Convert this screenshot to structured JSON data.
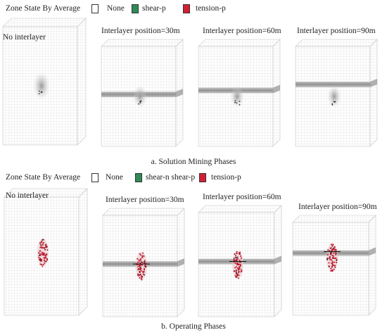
{
  "colors": {
    "none": "#ffffff",
    "shear_n": "#2e8b57",
    "shear_p": "#2e8b57",
    "tension_p": "#d31f35",
    "grid": "#cfcfcf",
    "interlayer": "#8a8a8a"
  },
  "section_a": {
    "legend": {
      "title": "Zone State By Average",
      "items": [
        {
          "label": "None",
          "color": "#ffffff"
        },
        {
          "label": "shear-p",
          "color": "#2e8b57"
        },
        {
          "label": "tension-p",
          "color": "#d31f35"
        }
      ]
    },
    "panels": [
      {
        "label": "No interlayer",
        "interlayer": false,
        "interlayer_depth_m": null
      },
      {
        "label": "Interlayer position=30m",
        "interlayer": true,
        "interlayer_depth_m": 30
      },
      {
        "label": "Interlayer position=60m",
        "interlayer": true,
        "interlayer_depth_m": 60
      },
      {
        "label": "Interlayer position=90m",
        "interlayer": true,
        "interlayer_depth_m": 90
      }
    ],
    "caption": "a. Solution Mining Phases"
  },
  "section_b": {
    "legend": {
      "title": "Zone State By Average",
      "items": [
        {
          "label": "None",
          "color": "#ffffff"
        },
        {
          "label": "shear-n  shear-p",
          "color": "#2e8b57"
        },
        {
          "label": "tension-p",
          "color": "#d31f35"
        }
      ]
    },
    "panels": [
      {
        "label": "No interlayer",
        "interlayer": false,
        "interlayer_depth_m": null
      },
      {
        "label": "Interlayer position=30m",
        "interlayer": true,
        "interlayer_depth_m": 30
      },
      {
        "label": "Interlayer position=60m",
        "interlayer": true,
        "interlayer_depth_m": 60
      },
      {
        "label": "Interlayer position=90m",
        "interlayer": true,
        "interlayer_depth_m": 90
      }
    ],
    "caption": "b. Operating Phases"
  }
}
